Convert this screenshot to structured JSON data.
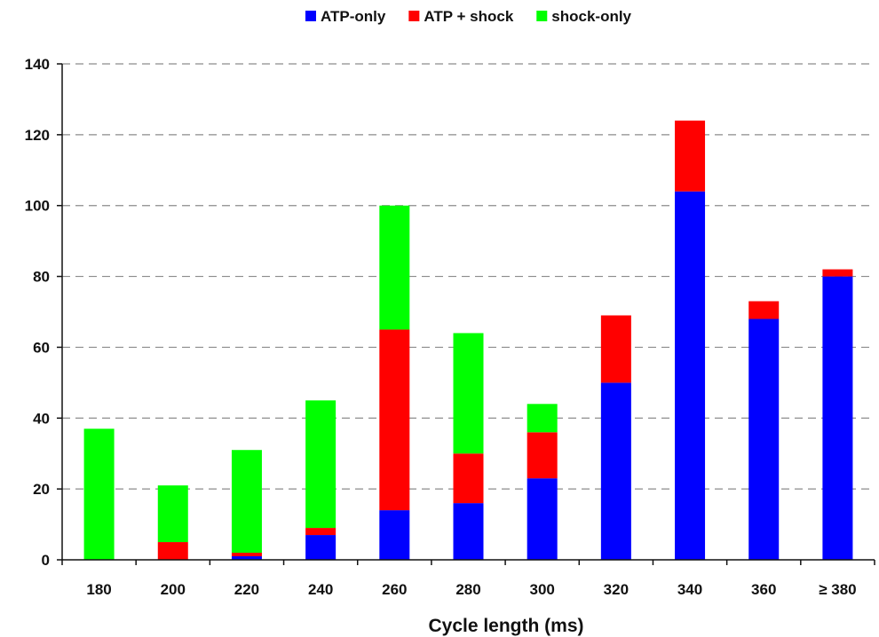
{
  "chart_data": {
    "type": "bar",
    "stacked": true,
    "title": "",
    "xlabel": "Cycle length (ms)",
    "ylabel": "",
    "ylim": [
      0,
      140
    ],
    "yticks": [
      0,
      20,
      40,
      60,
      80,
      100,
      120,
      140
    ],
    "grid": "horizontal dashed",
    "legend_position": "top-center",
    "categories": [
      "180",
      "200",
      "220",
      "240",
      "260",
      "280",
      "300",
      "320",
      "340",
      "360",
      "≥ 380"
    ],
    "series": [
      {
        "name": "ATP-only",
        "color": "#0000ff",
        "values": [
          0,
          0,
          1,
          7,
          14,
          16,
          23,
          50,
          104,
          68,
          80
        ]
      },
      {
        "name": "ATP + shock",
        "color": "#ff0000",
        "values": [
          0,
          5,
          1,
          2,
          51,
          14,
          13,
          19,
          20,
          5,
          2
        ]
      },
      {
        "name": "shock-only",
        "color": "#00ff00",
        "values": [
          37,
          16,
          29,
          36,
          35,
          34,
          8,
          0,
          0,
          0,
          0
        ]
      }
    ]
  }
}
